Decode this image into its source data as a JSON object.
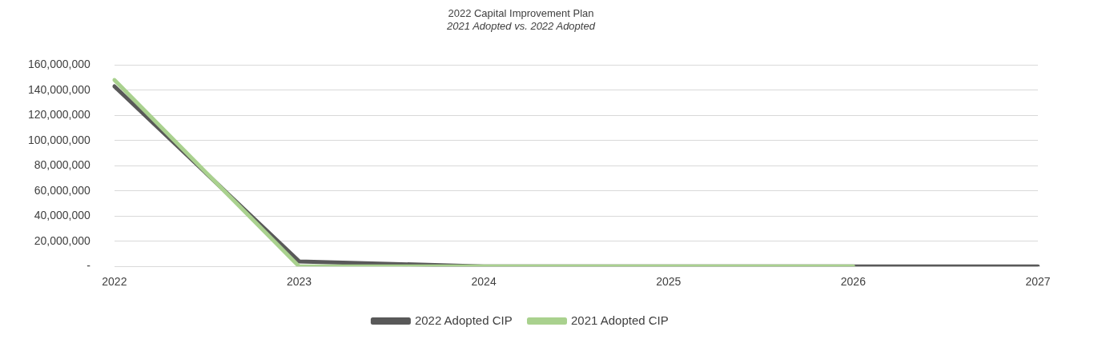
{
  "chart_data": {
    "type": "line",
    "title": "2022 Capital Improvement Plan",
    "subtitle": "2021 Adopted vs. 2022 Adopted",
    "categories": [
      "2022",
      "2023",
      "2024",
      "2025",
      "2026",
      "2027"
    ],
    "series": [
      {
        "name": "2022 Adopted CIP",
        "color": "#595959",
        "values": [
          143000000,
          4000000,
          0,
          0,
          0,
          0
        ]
      },
      {
        "name": "2021 Adopted CIP",
        "color": "#a9d18e",
        "values": [
          148000000,
          0,
          0,
          0,
          0,
          null
        ]
      }
    ],
    "ylim": [
      0,
      160000000
    ],
    "yticks": [
      {
        "value": 0,
        "label": "-"
      },
      {
        "value": 20000000,
        "label": "20,000,000"
      },
      {
        "value": 40000000,
        "label": "40,000,000"
      },
      {
        "value": 60000000,
        "label": "60,000,000"
      },
      {
        "value": 80000000,
        "label": "80,000,000"
      },
      {
        "value": 100000000,
        "label": "100,000,000"
      },
      {
        "value": 120000000,
        "label": "120,000,000"
      },
      {
        "value": 140000000,
        "label": "140,000,000"
      },
      {
        "value": 160000000,
        "label": "160,000,000"
      }
    ],
    "grid": "y",
    "legend": "bottom",
    "marker": "none",
    "line_style": "solid"
  }
}
